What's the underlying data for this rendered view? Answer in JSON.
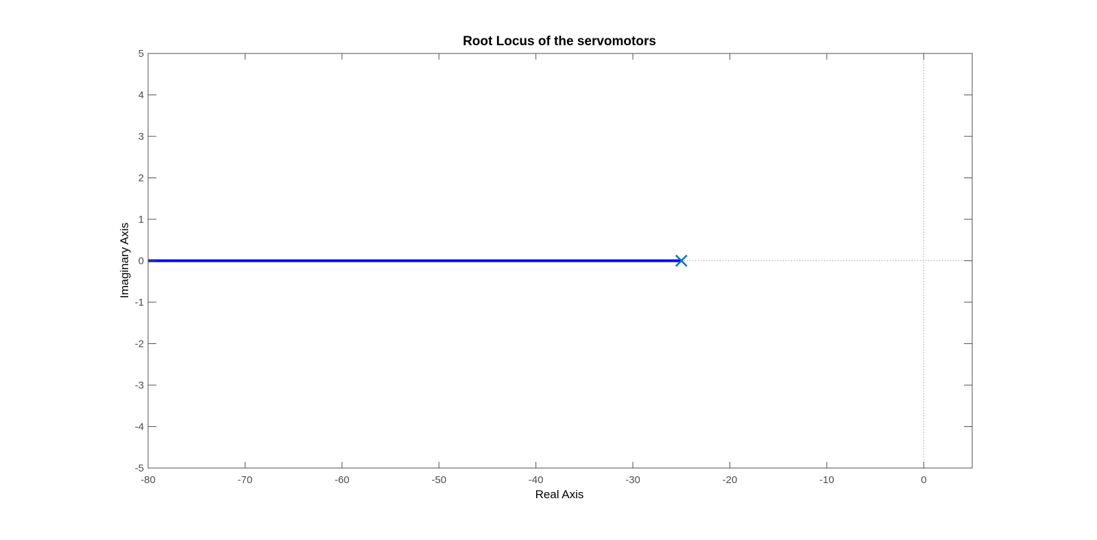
{
  "chart_data": {
    "type": "line",
    "title": "Root Locus of the servomotors",
    "xlabel": "Real Axis",
    "ylabel": "Imaginary Axis",
    "xlim": [
      -80,
      5
    ],
    "ylim": [
      -5,
      5
    ],
    "xticks": [
      -80,
      -70,
      -60,
      -50,
      -40,
      -30,
      -20,
      -10,
      0
    ],
    "yticks": [
      -5,
      -4,
      -3,
      -2,
      -1,
      0,
      1,
      2,
      3,
      4,
      5
    ],
    "grid": false,
    "series": [
      {
        "x": [
          -25,
          -80
        ],
        "y": [
          0,
          0
        ],
        "color": "#0000ff"
      }
    ],
    "poles": [
      {
        "x": -25,
        "y": 0,
        "marker": "x",
        "color": "#0072bd"
      }
    ],
    "reference_lines": [
      {
        "orientation": "horizontal",
        "value": 0,
        "from": -25,
        "to": 5,
        "style": "dotted"
      },
      {
        "orientation": "vertical",
        "value": 0,
        "style": "dotted"
      }
    ],
    "colors": {
      "axes": "#4d4d4d",
      "locus": "#0000ff",
      "pole": "#0072bd",
      "reference": "#a0a0a0"
    }
  }
}
